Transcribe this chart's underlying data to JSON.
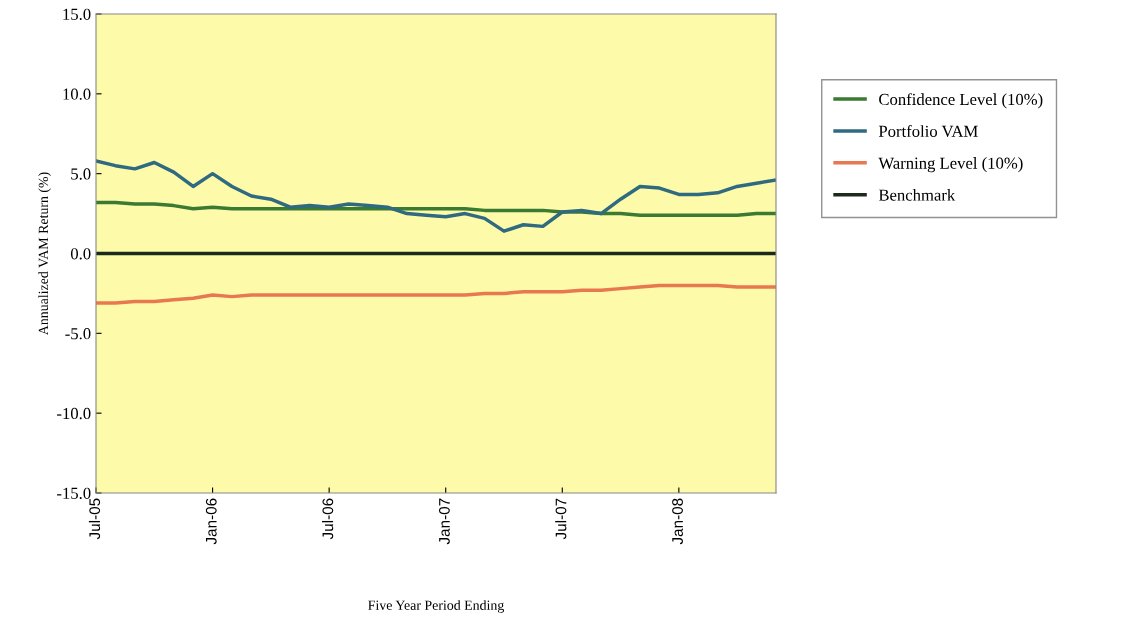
{
  "chart_data": {
    "type": "line",
    "xlabel": "Five Year Period Ending",
    "ylabel": "Annualized VAM Return (%)",
    "categories": [
      "Jul-05",
      null,
      null,
      null,
      null,
      null,
      "Jan-06",
      null,
      null,
      null,
      null,
      null,
      "Jul-06",
      null,
      null,
      null,
      null,
      null,
      "Jan-07",
      null,
      null,
      null,
      null,
      null,
      "Jul-07",
      null,
      null,
      null,
      null,
      null,
      "Jan-08",
      null,
      null,
      null,
      null,
      null
    ],
    "series": [
      {
        "name": "Confidence Level (10%)",
        "color": "#3a7a32",
        "values": [
          3.2,
          3.2,
          3.1,
          3.1,
          3.0,
          2.8,
          2.9,
          2.8,
          2.8,
          2.8,
          2.8,
          2.8,
          2.8,
          2.8,
          2.8,
          2.8,
          2.8,
          2.8,
          2.8,
          2.8,
          2.7,
          2.7,
          2.7,
          2.7,
          2.6,
          2.6,
          2.5,
          2.5,
          2.4,
          2.4,
          2.4,
          2.4,
          2.4,
          2.4,
          2.5,
          2.5
        ]
      },
      {
        "name": "Portfolio VAM",
        "color": "#2f6a80",
        "values": [
          5.8,
          5.5,
          5.3,
          5.7,
          5.1,
          4.2,
          5.0,
          4.2,
          3.6,
          3.4,
          2.9,
          3.0,
          2.9,
          3.1,
          3.0,
          2.9,
          2.5,
          2.4,
          2.3,
          2.5,
          2.2,
          1.4,
          1.8,
          1.7,
          2.6,
          2.7,
          2.5,
          3.4,
          4.2,
          4.1,
          3.7,
          3.7,
          3.8,
          4.2,
          4.4,
          4.6
        ]
      },
      {
        "name": "Warning Level (10%)",
        "color": "#e87850",
        "values": [
          -3.1,
          -3.1,
          -3.0,
          -3.0,
          -2.9,
          -2.8,
          -2.6,
          -2.7,
          -2.6,
          -2.6,
          -2.6,
          -2.6,
          -2.6,
          -2.6,
          -2.6,
          -2.6,
          -2.6,
          -2.6,
          -2.6,
          -2.6,
          -2.5,
          -2.5,
          -2.4,
          -2.4,
          -2.4,
          -2.3,
          -2.3,
          -2.2,
          -2.1,
          -2.0,
          -2.0,
          -2.0,
          -2.0,
          -2.1,
          -2.1,
          -2.1
        ]
      },
      {
        "name": "Benchmark",
        "color": "#1c2a1c",
        "values": [
          0,
          0,
          0,
          0,
          0,
          0,
          0,
          0,
          0,
          0,
          0,
          0,
          0,
          0,
          0,
          0,
          0,
          0,
          0,
          0,
          0,
          0,
          0,
          0,
          0,
          0,
          0,
          0,
          0,
          0,
          0,
          0,
          0,
          0,
          0,
          0
        ]
      }
    ],
    "ylim": [
      -15,
      15
    ],
    "yticks": [
      {
        "value": 15,
        "label": "15.0"
      },
      {
        "value": 10,
        "label": "10.0"
      },
      {
        "value": 5,
        "label": "5.0"
      },
      {
        "value": 0,
        "label": "0.0"
      },
      {
        "value": -5,
        "label": "-5.0"
      },
      {
        "value": -10,
        "label": "-10.0"
      },
      {
        "value": -15,
        "label": "-15.0"
      }
    ],
    "grid": false,
    "legend": "right",
    "marker": "none",
    "line_style": "solid"
  }
}
